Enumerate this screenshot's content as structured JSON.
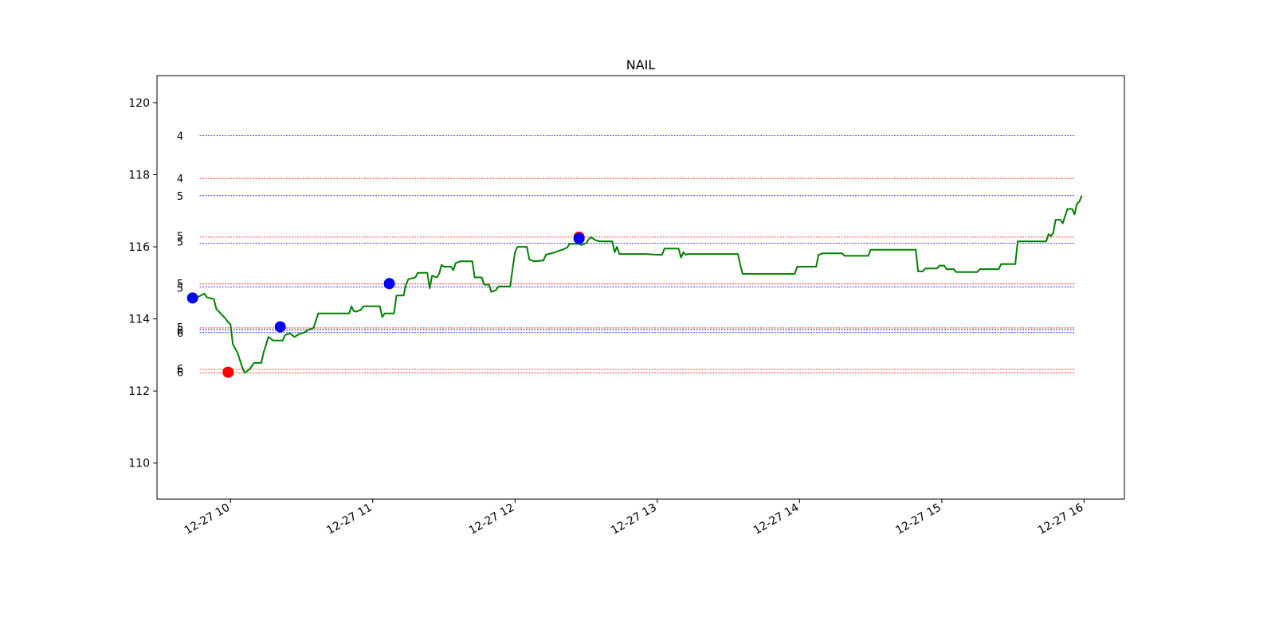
{
  "chart_data": {
    "type": "line",
    "title": "NAIL",
    "xlabel": "",
    "ylabel": "",
    "grid": false,
    "xlim": [
      "2024-12-27 09:29",
      "2024-12-27 16:17"
    ],
    "ylim": [
      109.0,
      120.75
    ],
    "x_ticks": [
      "12-27 10",
      "12-27 11",
      "12-27 12",
      "12-27 13",
      "12-27 14",
      "12-27 15",
      "12-27 16"
    ],
    "y_ticks": [
      "110",
      "112",
      "114",
      "116",
      "118",
      "120"
    ],
    "colors": {
      "price": "#008000",
      "buy": "#0000ff",
      "sell": "#ff0000",
      "axes": "#000000"
    },
    "series": [
      {
        "color": "#008000",
        "points": [
          [
            "09:46",
            114.6
          ],
          [
            "09:49",
            114.7
          ],
          [
            "09:50",
            114.6
          ],
          [
            "09:53",
            114.55
          ],
          [
            "09:54",
            114.28
          ],
          [
            "09:58",
            114.0
          ],
          [
            "09:59",
            113.9
          ],
          [
            "10:00",
            113.85
          ],
          [
            "10:01",
            113.3
          ],
          [
            "10:03",
            113.05
          ],
          [
            "10:05",
            112.65
          ],
          [
            "10:06",
            112.5
          ],
          [
            "10:08",
            112.6
          ],
          [
            "10:10",
            112.78
          ],
          [
            "10:13",
            112.78
          ],
          [
            "10:14",
            113.08
          ],
          [
            "10:15",
            113.28
          ],
          [
            "10:16",
            113.5
          ],
          [
            "10:17",
            113.45
          ],
          [
            "10:18",
            113.4
          ],
          [
            "10:22",
            113.4
          ],
          [
            "10:23",
            113.55
          ],
          [
            "10:25",
            113.6
          ],
          [
            "10:27",
            113.5
          ],
          [
            "10:29",
            113.58
          ],
          [
            "10:31",
            113.62
          ],
          [
            "10:33",
            113.7
          ],
          [
            "10:35",
            113.75
          ],
          [
            "10:36",
            113.95
          ],
          [
            "10:37",
            114.15
          ],
          [
            "10:50",
            114.15
          ],
          [
            "10:51",
            114.35
          ],
          [
            "10:52",
            114.22
          ],
          [
            "10:53",
            114.2
          ],
          [
            "10:55",
            114.25
          ],
          [
            "10:56",
            114.35
          ],
          [
            "11:03",
            114.35
          ],
          [
            "11:04",
            114.05
          ],
          [
            "11:05",
            114.15
          ],
          [
            "11:09",
            114.15
          ],
          [
            "11:10",
            114.65
          ],
          [
            "11:13",
            114.65
          ],
          [
            "11:14",
            114.95
          ],
          [
            "11:15",
            115.1
          ],
          [
            "11:18",
            115.15
          ],
          [
            "11:19",
            115.28
          ],
          [
            "11:23",
            115.28
          ],
          [
            "11:24",
            114.85
          ],
          [
            "11:25",
            115.2
          ],
          [
            "11:27",
            115.15
          ],
          [
            "11:28",
            115.25
          ],
          [
            "11:29",
            115.5
          ],
          [
            "11:30",
            115.45
          ],
          [
            "11:33",
            115.45
          ],
          [
            "11:34",
            115.35
          ],
          [
            "11:35",
            115.55
          ],
          [
            "11:37",
            115.6
          ],
          [
            "11:42",
            115.6
          ],
          [
            "11:43",
            115.15
          ],
          [
            "11:46",
            115.15
          ],
          [
            "11:47",
            114.95
          ],
          [
            "11:49",
            114.95
          ],
          [
            "11:50",
            114.75
          ],
          [
            "11:52",
            114.8
          ],
          [
            "11:53",
            114.9
          ],
          [
            "11:58",
            114.9
          ],
          [
            "11:59",
            115.4
          ],
          [
            "12:00",
            115.85
          ],
          [
            "12:01",
            116.0
          ],
          [
            "12:05",
            116.0
          ],
          [
            "12:06",
            115.65
          ],
          [
            "12:08",
            115.6
          ],
          [
            "12:12",
            115.62
          ],
          [
            "12:13",
            115.78
          ],
          [
            "12:17",
            115.85
          ],
          [
            "12:18",
            115.88
          ],
          [
            "12:20",
            115.92
          ],
          [
            "12:22",
            115.98
          ],
          [
            "12:23",
            116.08
          ],
          [
            "12:27",
            116.08
          ],
          [
            "12:28",
            116.05
          ],
          [
            "12:30",
            116.1
          ],
          [
            "12:31",
            116.2
          ],
          [
            "12:32",
            116.27
          ],
          [
            "12:34",
            116.18
          ],
          [
            "12:36",
            116.15
          ],
          [
            "12:41",
            116.15
          ],
          [
            "12:42",
            115.85
          ],
          [
            "12:43",
            116.0
          ],
          [
            "12:44",
            115.8
          ],
          [
            "12:55",
            115.8
          ],
          [
            "13:00",
            115.78
          ],
          [
            "13:02",
            115.78
          ],
          [
            "13:03",
            115.95
          ],
          [
            "13:09",
            115.95
          ],
          [
            "13:10",
            115.7
          ],
          [
            "13:11",
            115.85
          ],
          [
            "13:12",
            115.78
          ],
          [
            "13:13",
            115.8
          ],
          [
            "13:34",
            115.8
          ],
          [
            "13:35",
            115.5
          ],
          [
            "13:36",
            115.25
          ],
          [
            "13:58",
            115.25
          ],
          [
            "13:59",
            115.45
          ],
          [
            "14:07",
            115.45
          ],
          [
            "14:08",
            115.78
          ],
          [
            "14:10",
            115.82
          ],
          [
            "14:18",
            115.82
          ],
          [
            "14:19",
            115.75
          ],
          [
            "14:29",
            115.75
          ],
          [
            "14:30",
            115.92
          ],
          [
            "14:49",
            115.92
          ],
          [
            "14:50",
            115.32
          ],
          [
            "14:52",
            115.32
          ],
          [
            "14:53",
            115.4
          ],
          [
            "14:58",
            115.4
          ],
          [
            "14:59",
            115.48
          ],
          [
            "15:01",
            115.48
          ],
          [
            "15:02",
            115.38
          ],
          [
            "15:05",
            115.38
          ],
          [
            "15:06",
            115.3
          ],
          [
            "15:15",
            115.3
          ],
          [
            "15:16",
            115.38
          ],
          [
            "15:24",
            115.38
          ],
          [
            "15:25",
            115.52
          ],
          [
            "15:31",
            115.52
          ],
          [
            "15:32",
            116.15
          ],
          [
            "15:44",
            116.15
          ],
          [
            "15:45",
            116.35
          ],
          [
            "15:46",
            116.3
          ],
          [
            "15:47",
            116.38
          ],
          [
            "15:48",
            116.75
          ],
          [
            "15:50",
            116.75
          ],
          [
            "15:51",
            116.65
          ],
          [
            "15:52",
            116.85
          ],
          [
            "15:53",
            117.05
          ],
          [
            "15:55",
            117.05
          ],
          [
            "15:56",
            116.9
          ],
          [
            "15:57",
            117.2
          ],
          [
            "15:58",
            117.25
          ],
          [
            "15:59",
            117.42
          ]
        ]
      }
    ],
    "buy_markers": [
      {
        "x": "09:44",
        "y": 114.58
      },
      {
        "x": "10:21",
        "y": 113.78
      },
      {
        "x": "11:07",
        "y": 114.98
      },
      {
        "x": "12:27",
        "y": 116.23
      }
    ],
    "sell_markers": [
      {
        "x": "09:59",
        "y": 112.52
      },
      {
        "x": "12:27",
        "y": 116.27
      }
    ],
    "levels": [
      {
        "y": 119.08,
        "color": "#0000ff",
        "label": "4",
        "label_y": 119.08
      },
      {
        "y": 117.9,
        "color": "#ff0000",
        "label": "4",
        "label_y": 117.9
      },
      {
        "y": 117.42,
        "color": "#0000ff",
        "label": "5",
        "label_y": 117.42
      },
      {
        "y": 116.27,
        "color": "#ff0000",
        "label": "5",
        "label_y": 116.3
      },
      {
        "y": 116.1,
        "color": "#0000ff",
        "label": "5",
        "label_y": 116.14
      },
      {
        "y": 114.97,
        "color": "#ff0000",
        "label": "5",
        "label_y": 114.99
      },
      {
        "y": 114.88,
        "color": "#0000ff",
        "label": "5",
        "label_y": 114.86
      },
      {
        "y": 113.75,
        "color": "#ff0000",
        "label": "5",
        "label_y": 113.77
      },
      {
        "y": 113.7,
        "color": "#0000ff",
        "label": "6",
        "label_y": 113.69
      },
      {
        "y": 113.62,
        "color": "#0000ff",
        "label": "6",
        "label_y": 113.62
      },
      {
        "y": 112.6,
        "color": "#ff0000",
        "label": "6",
        "label_y": 112.62
      },
      {
        "y": 112.5,
        "color": "#ff0000",
        "label": "6",
        "label_y": 112.52
      }
    ],
    "levels_span": [
      "09:47",
      "15:56"
    ]
  }
}
